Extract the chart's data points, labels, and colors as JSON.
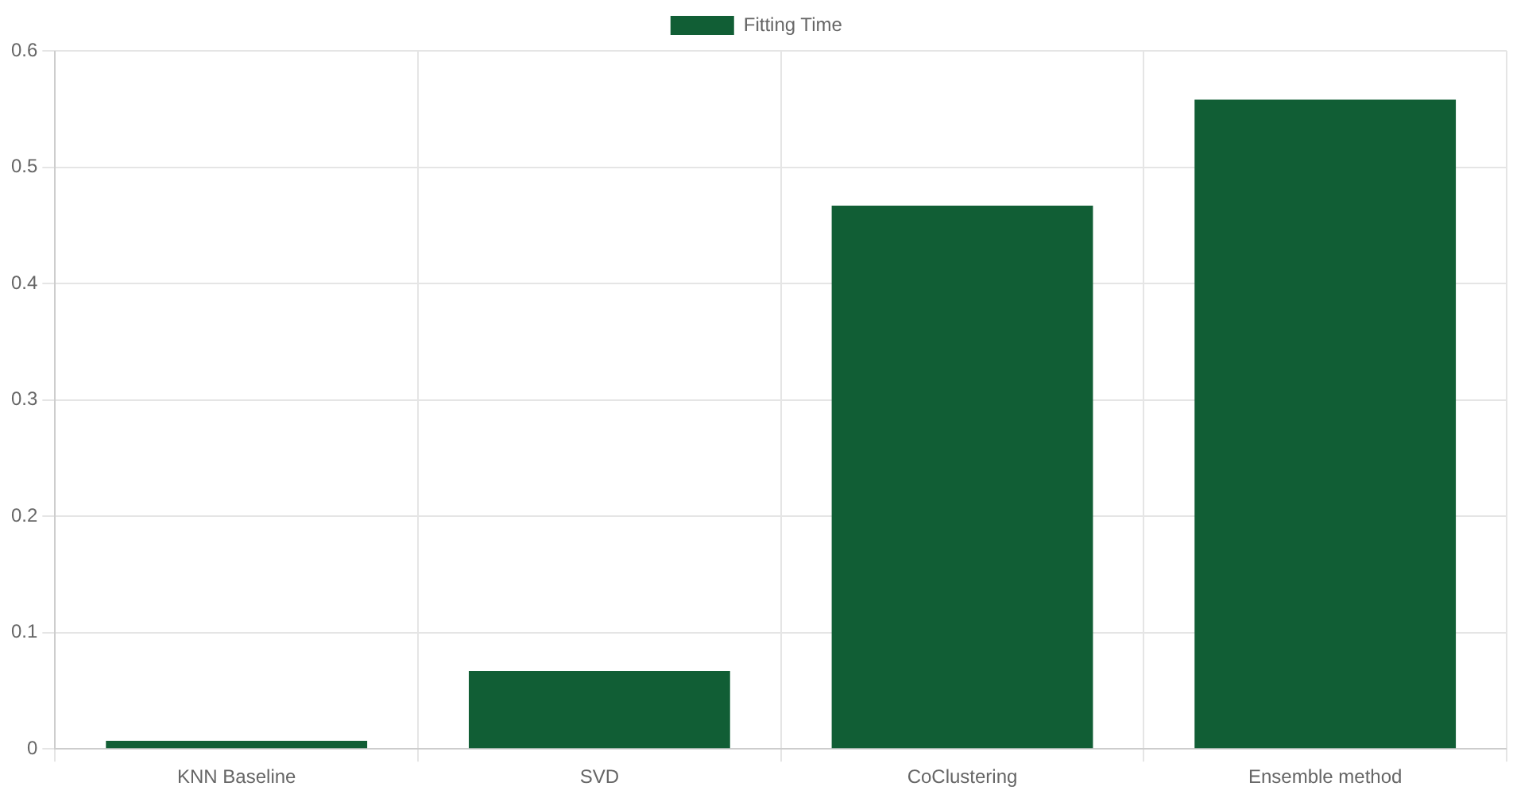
{
  "chart_data": {
    "type": "bar",
    "categories": [
      "KNN Baseline",
      "SVD",
      "CoClustering",
      "Ensemble method"
    ],
    "series": [
      {
        "name": "Fitting Time",
        "color": "#115e35",
        "values": [
          0.007,
          0.067,
          0.467,
          0.558
        ]
      }
    ],
    "ylim": [
      0,
      0.6
    ],
    "yticks": [
      0,
      0.1,
      0.2,
      0.3,
      0.4,
      0.5,
      0.6
    ],
    "grid": true,
    "legend": "top"
  }
}
